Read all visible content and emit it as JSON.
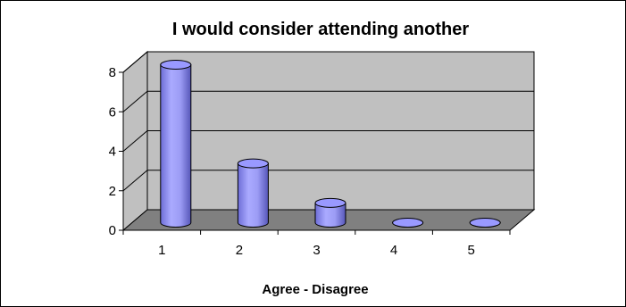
{
  "chart_data": {
    "type": "bar",
    "title": "I would consider attending another",
    "xlabel": "Agree - Disagree",
    "ylabel": "",
    "categories": [
      "1",
      "2",
      "3",
      "4",
      "5"
    ],
    "values": [
      8,
      3,
      1,
      0,
      0
    ],
    "ylim": [
      0,
      8
    ],
    "yticks": [
      0,
      2,
      4,
      6,
      8
    ],
    "grid": true,
    "legend": "none",
    "style": "3d-cylinder",
    "colors": {
      "bar_fill": "#9999ff",
      "bar_shade": "#6666cc",
      "bar_highlight": "#ccccff",
      "wall": "#c0c0c0",
      "floor": "#808080",
      "gridline": "#000000"
    }
  }
}
